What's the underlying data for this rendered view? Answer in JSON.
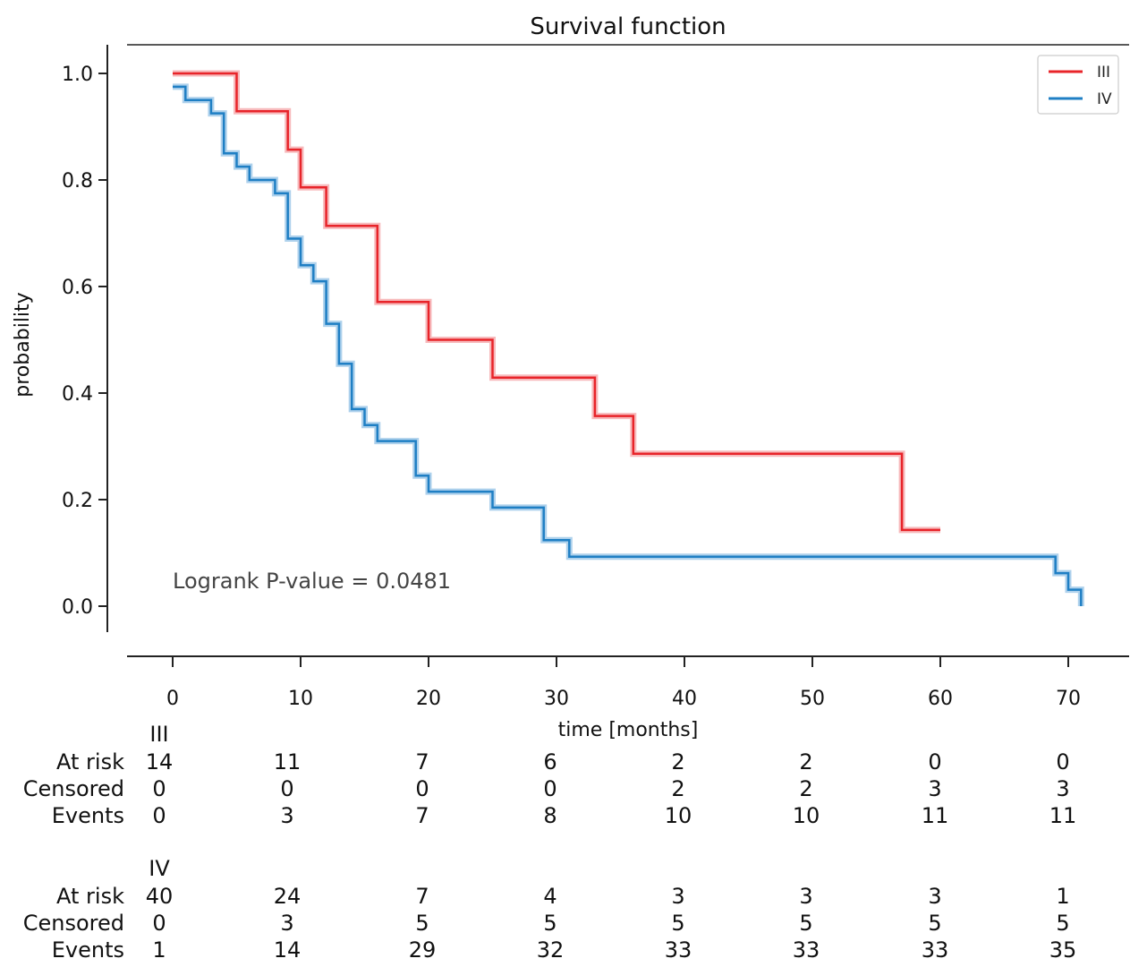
{
  "chart_data": {
    "type": "line",
    "subtype": "kaplan-meier-step",
    "title": "Survival function",
    "xlabel": "time [months]",
    "ylabel": "probability",
    "xlim": [
      -3.5,
      74
    ],
    "ylim": [
      -0.05,
      1.05
    ],
    "x_ticks": [
      0,
      10,
      20,
      30,
      40,
      50,
      60,
      70
    ],
    "x_tick_labels": [
      "0",
      "10",
      "20",
      "30",
      "40",
      "50",
      "60",
      "70"
    ],
    "y_ticks": [
      0.0,
      0.2,
      0.4,
      0.6,
      0.8,
      1.0
    ],
    "y_tick_labels": [
      "0.0",
      "0.2",
      "0.4",
      "0.6",
      "0.8",
      "1.0"
    ],
    "legend_position": "top-right",
    "annotation": "Logrank P-value = 0.0481",
    "series": [
      {
        "name": "III",
        "color": "#e8242a",
        "band_color": "#f4a3a6",
        "points": [
          [
            0,
            1.0
          ],
          [
            5,
            1.0
          ],
          [
            5,
            0.929
          ],
          [
            9,
            0.929
          ],
          [
            9,
            0.857
          ],
          [
            10,
            0.857
          ],
          [
            10,
            0.786
          ],
          [
            12,
            0.786
          ],
          [
            12,
            0.714
          ],
          [
            16,
            0.714
          ],
          [
            16,
            0.571
          ],
          [
            20,
            0.571
          ],
          [
            20,
            0.5
          ],
          [
            25,
            0.5
          ],
          [
            25,
            0.429
          ],
          [
            33,
            0.429
          ],
          [
            33,
            0.357
          ],
          [
            36,
            0.357
          ],
          [
            36,
            0.286
          ],
          [
            57,
            0.286
          ],
          [
            57,
            0.143
          ],
          [
            60,
            0.143
          ]
        ]
      },
      {
        "name": "IV",
        "color": "#1f7fc4",
        "band_color": "#93c2e6",
        "points": [
          [
            0,
            0.975
          ],
          [
            1,
            0.975
          ],
          [
            1,
            0.95
          ],
          [
            3,
            0.95
          ],
          [
            3,
            0.925
          ],
          [
            4,
            0.925
          ],
          [
            4,
            0.85
          ],
          [
            5,
            0.85
          ],
          [
            5,
            0.825
          ],
          [
            6,
            0.825
          ],
          [
            6,
            0.8
          ],
          [
            8,
            0.8
          ],
          [
            8,
            0.775
          ],
          [
            9,
            0.775
          ],
          [
            9,
            0.69
          ],
          [
            10,
            0.69
          ],
          [
            10,
            0.64
          ],
          [
            11,
            0.64
          ],
          [
            11,
            0.61
          ],
          [
            12,
            0.61
          ],
          [
            12,
            0.53
          ],
          [
            13,
            0.53
          ],
          [
            13,
            0.455
          ],
          [
            14,
            0.455
          ],
          [
            14,
            0.37
          ],
          [
            15,
            0.37
          ],
          [
            15,
            0.34
          ],
          [
            16,
            0.34
          ],
          [
            16,
            0.31
          ],
          [
            19,
            0.31
          ],
          [
            19,
            0.245
          ],
          [
            20,
            0.245
          ],
          [
            20,
            0.215
          ],
          [
            25,
            0.215
          ],
          [
            25,
            0.185
          ],
          [
            29,
            0.185
          ],
          [
            29,
            0.124
          ],
          [
            31,
            0.124
          ],
          [
            31,
            0.093
          ],
          [
            69,
            0.093
          ],
          [
            69,
            0.062
          ],
          [
            70,
            0.062
          ],
          [
            70,
            0.031
          ],
          [
            71,
            0.031
          ],
          [
            71,
            0.0
          ]
        ]
      }
    ],
    "risk_table": {
      "columns": [
        "0",
        "10",
        "20",
        "30",
        "40",
        "50",
        "60",
        "70"
      ],
      "groups": [
        {
          "name": "III",
          "rows": [
            {
              "label": "At risk",
              "values": [
                "14",
                "11",
                "7",
                "6",
                "2",
                "2",
                "0",
                "0"
              ]
            },
            {
              "label": "Censored",
              "values": [
                "0",
                "0",
                "0",
                "0",
                "2",
                "2",
                "3",
                "3"
              ]
            },
            {
              "label": "Events",
              "values": [
                "0",
                "3",
                "7",
                "8",
                "10",
                "10",
                "11",
                "11"
              ]
            }
          ]
        },
        {
          "name": "IV",
          "rows": [
            {
              "label": "At risk",
              "values": [
                "40",
                "24",
                "7",
                "4",
                "3",
                "3",
                "3",
                "1"
              ]
            },
            {
              "label": "Censored",
              "values": [
                "0",
                "3",
                "5",
                "5",
                "5",
                "5",
                "5",
                "5"
              ]
            },
            {
              "label": "Events",
              "values": [
                "1",
                "14",
                "29",
                "32",
                "33",
                "33",
                "33",
                "35"
              ]
            }
          ]
        }
      ]
    }
  }
}
